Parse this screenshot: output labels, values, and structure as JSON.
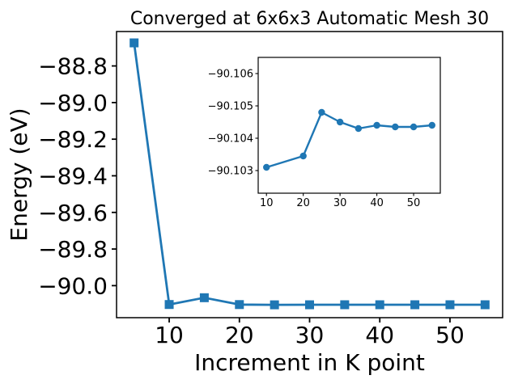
{
  "figure": {
    "title": "Converged at 6x6x3 Automatic Mesh 30",
    "x_axis_label": "Increment in K point",
    "y_axis_label": "Energy (eV)",
    "background_color": "#ffffff",
    "line_color": "#1f77b4",
    "text_color": "#000000"
  },
  "chart_data": [
    {
      "id": "main",
      "type": "line",
      "marker": "square",
      "title": "Converged at 6x6x3 Automatic Mesh 30",
      "xlabel": "Increment in K point",
      "ylabel": "Energy (eV)",
      "x": [
        5,
        10,
        15,
        20,
        25,
        30,
        35,
        40,
        45,
        50,
        55
      ],
      "y": [
        -88.674,
        -90.1031,
        -90.066,
        -90.10345,
        -90.1048,
        -90.1045,
        -90.1043,
        -90.1044,
        -90.10435,
        -90.10435,
        -90.1044
      ],
      "xlim": [
        2.5,
        57.5
      ],
      "ylim_bottom_top": [
        -90.175,
        -88.612
      ],
      "xtick_values": [
        10,
        20,
        30,
        40,
        50
      ],
      "xtick_labels": [
        "10",
        "20",
        "30",
        "40",
        "50"
      ],
      "ytick_values": [
        -88.8,
        -89.0,
        -89.2,
        -89.4,
        -89.6,
        -89.8,
        -90.0
      ],
      "ytick_labels": [
        "−88.8",
        "−89.0",
        "−89.2",
        "−89.4",
        "−89.6",
        "−89.8",
        "−90.0"
      ],
      "line_color": "#1f77b4",
      "grid": false,
      "legend": "none"
    },
    {
      "id": "inset",
      "type": "line",
      "marker": "circle",
      "title": "",
      "xlabel": "",
      "ylabel": "",
      "y_axis_inverted": true,
      "x": [
        10,
        20,
        25,
        30,
        35,
        40,
        45,
        50,
        55
      ],
      "y": [
        -90.1031,
        -90.10345,
        -90.1048,
        -90.1045,
        -90.1043,
        -90.1044,
        -90.10435,
        -90.10435,
        -90.1044
      ],
      "xlim": [
        7.75,
        57.25
      ],
      "ylim_bottom_top": [
        -90.1023,
        -90.1065
      ],
      "xtick_values": [
        10,
        20,
        30,
        40,
        50
      ],
      "xtick_labels": [
        "10",
        "20",
        "30",
        "40",
        "50"
      ],
      "ytick_values": [
        -90.106,
        -90.105,
        -90.104,
        -90.103
      ],
      "ytick_labels": [
        "−90.106",
        "−90.105",
        "−90.104",
        "−90.103"
      ],
      "line_color": "#1f77b4",
      "grid": false,
      "legend": "none"
    }
  ]
}
